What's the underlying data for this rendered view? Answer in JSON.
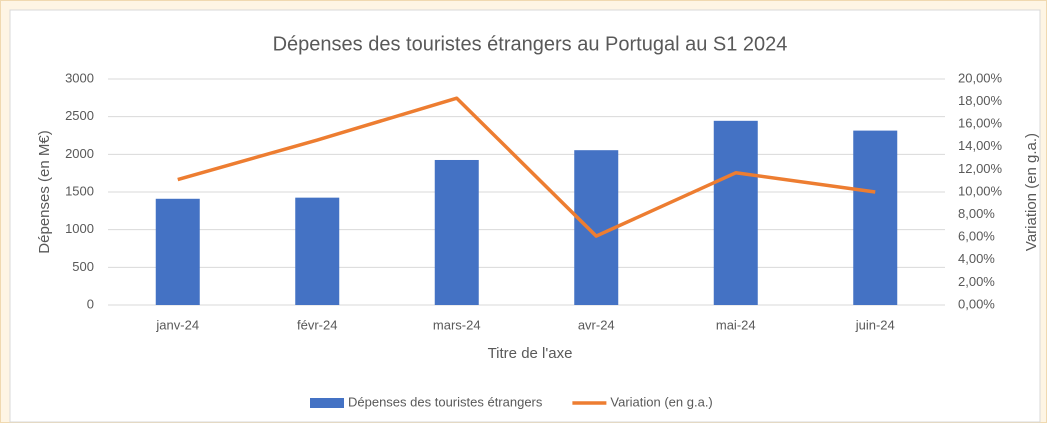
{
  "chart_data": {
    "type": "bar",
    "title": "Dépenses des touristes étrangers au Portugal au S1 2024",
    "x_label": "Titre de l'axe",
    "y_label": "Dépenses (en M€)",
    "y2_label": "Variation (en g.a.)",
    "categories": [
      "janv-24",
      "févr-24",
      "mars-24",
      "avr-24",
      "mai-24",
      "juin-24"
    ],
    "series": [
      {
        "name": "Dépenses des touristes étrangers",
        "type": "bar",
        "color": "#4472c4",
        "values": [
          1410,
          1425,
          1925,
          2055,
          2445,
          2315
        ]
      },
      {
        "name": "Variation (en g.a.)",
        "type": "line",
        "axis": "y2",
        "color": "#ed7d31",
        "values": [
          11.1,
          14.6,
          18.3,
          6.1,
          11.7,
          10.0
        ]
      }
    ],
    "ylim": [
      0,
      3000
    ],
    "yticks": [
      0,
      500,
      1000,
      1500,
      2000,
      2500,
      3000
    ],
    "y2lim": [
      0,
      20
    ],
    "y2ticks": [
      {
        "value": 0,
        "label": "0,00%"
      },
      {
        "value": 2,
        "label": "2,00%"
      },
      {
        "value": 4,
        "label": "4,00%"
      },
      {
        "value": 6,
        "label": "6,00%"
      },
      {
        "value": 8,
        "label": "8,00%"
      },
      {
        "value": 10,
        "label": "10,00%"
      },
      {
        "value": 12,
        "label": "12,00%"
      },
      {
        "value": 14,
        "label": "14,00%"
      },
      {
        "value": 16,
        "label": "16,00%"
      },
      {
        "value": 18,
        "label": "18,00%"
      },
      {
        "value": 20,
        "label": "20,00%"
      }
    ],
    "grid": true,
    "legend": "bottom"
  }
}
